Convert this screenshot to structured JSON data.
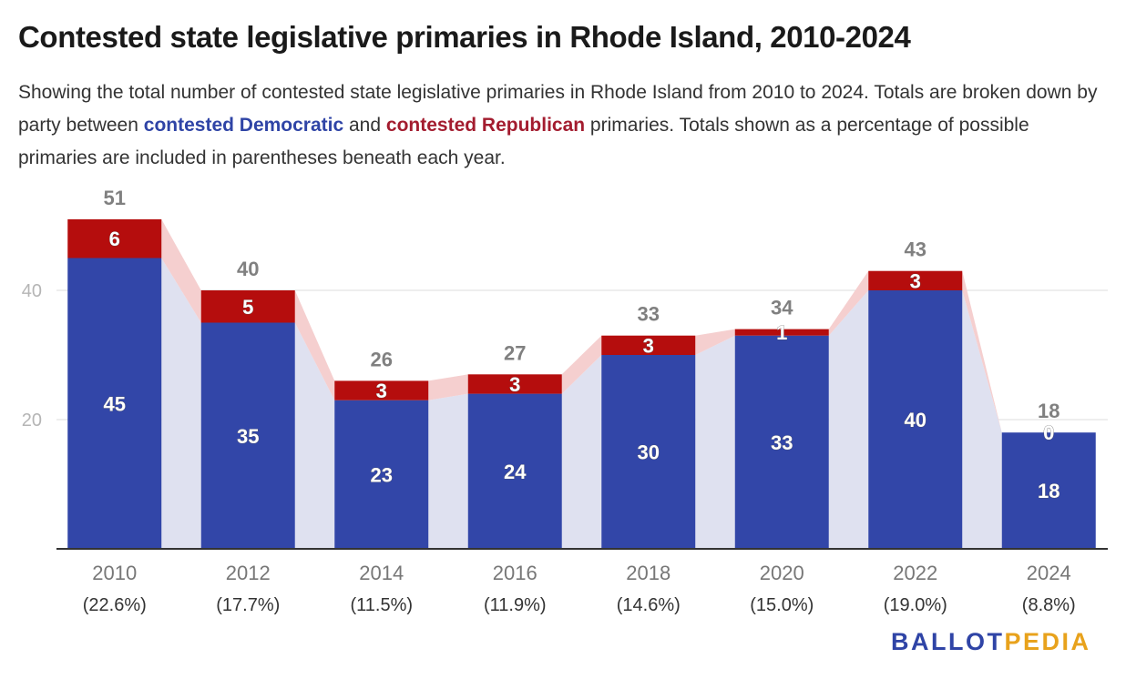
{
  "title": "Contested state legislative primaries in Rhode Island, 2010-2024",
  "subtitle": {
    "part1": "Showing the total number of contested state legislative primaries in Rhode Island from 2010 to 2024. Totals are broken down by party between ",
    "dem_label": "contested Democratic",
    "part2": " and ",
    "rep_label": "contested Republican",
    "part3": " primaries. Totals shown as a percentage of possible primaries are included in parentheses beneath each year."
  },
  "logo": {
    "ballot": "BALLOT",
    "pedia": "PEDIA"
  },
  "colors": {
    "democratic": "#3246a8",
    "republican": "#b50d0d",
    "dem_text": "#2f44a6",
    "rep_text": "#a31c2f",
    "dem_band": "#dfe1f0",
    "rep_band": "#f5cfcf",
    "logo_ballot": "#2f44a6",
    "logo_pedia": "#e8a21c"
  },
  "chart_data": {
    "type": "bar",
    "stacked": true,
    "categories": [
      "2010",
      "2012",
      "2014",
      "2016",
      "2018",
      "2020",
      "2022",
      "2024"
    ],
    "category_sublabels": [
      "(22.6%)",
      "(17.7%)",
      "(11.5%)",
      "(11.9%)",
      "(14.6%)",
      "(15.0%)",
      "(19.0%)",
      "(8.8%)"
    ],
    "series": [
      {
        "name": "contested Democratic",
        "values": [
          45,
          35,
          23,
          24,
          30,
          33,
          40,
          18
        ]
      },
      {
        "name": "contested Republican",
        "values": [
          6,
          5,
          3,
          3,
          3,
          1,
          3,
          0
        ]
      }
    ],
    "totals": [
      51,
      40,
      26,
      27,
      33,
      34,
      43,
      18
    ],
    "ylim": [
      0,
      60
    ],
    "yticks": [
      20,
      40
    ],
    "grid": true,
    "legend": "none"
  }
}
